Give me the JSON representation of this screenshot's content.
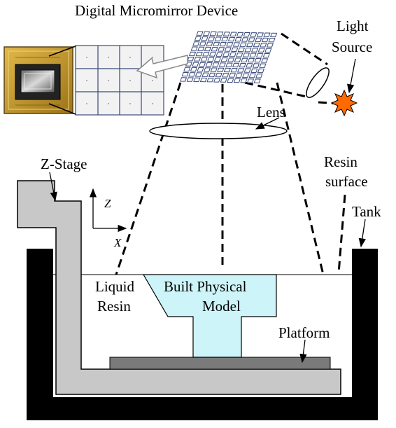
{
  "labels": {
    "dmd": "Digital Micromirror Device",
    "light_source_1": "Light",
    "light_source_2": "Source",
    "lens": "Lens",
    "z_stage": "Z-Stage",
    "resin_surface_1": "Resin",
    "resin_surface_2": "surface",
    "tank": "Tank",
    "liquid_resin_1": "Liquid",
    "liquid_resin_2": "Resin",
    "model_1": "Built Physical",
    "model_2": "Model",
    "platform": "Platform",
    "axis_z": "Z",
    "axis_x": "X"
  },
  "colors": {
    "stage": "#c8c8c8",
    "model": "#cdf4f8",
    "platform": "#7a7a7a",
    "tank": "#000000",
    "light": "#ff6a00",
    "chip_gold": "#c89a2a"
  }
}
